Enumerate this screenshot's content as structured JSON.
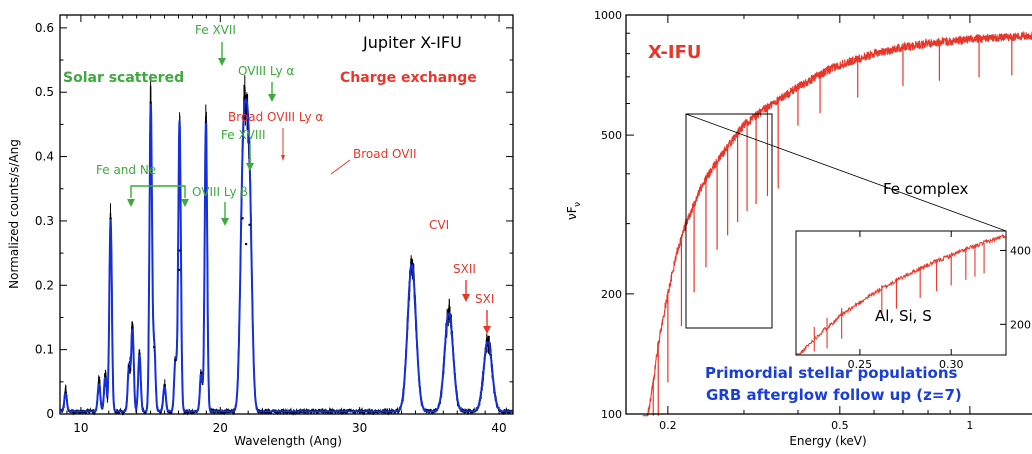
{
  "chart_data": [
    {
      "type": "line",
      "title": "Jupiter X-IFU",
      "xlabel": "Wavelength (Ang)",
      "ylabel": "Normalized  counts/s/Ang",
      "xlim": [
        8.5,
        41
      ],
      "ylim": [
        0,
        0.62
      ],
      "x_ticks": [
        "10",
        "20",
        "30",
        "40"
      ],
      "x_tick_values": [
        10,
        20,
        30,
        40
      ],
      "y_ticks": [
        "0",
        "0.1",
        "0.2",
        "0.3",
        "0.4",
        "0.5",
        "0.6"
      ],
      "y_tick_values": [
        0,
        0.1,
        0.2,
        0.3,
        0.4,
        0.5,
        0.6
      ],
      "colors": {
        "data": "#000000",
        "model": "#1530d8",
        "green": "#3caa3c",
        "red": "#e8362a"
      },
      "baseline": 0.004,
      "peaks": [
        {
          "x": 8.9,
          "y": 0.03
        },
        {
          "x": 11.3,
          "y": 0.045
        },
        {
          "x": 11.75,
          "y": 0.055
        },
        {
          "x": 12.13,
          "y": 0.3
        },
        {
          "x": 13.45,
          "y": 0.07
        },
        {
          "x": 13.7,
          "y": 0.13
        },
        {
          "x": 14.2,
          "y": 0.09
        },
        {
          "x": 15.01,
          "y": 0.48
        },
        {
          "x": 15.26,
          "y": 0.1
        },
        {
          "x": 16.0,
          "y": 0.04
        },
        {
          "x": 16.78,
          "y": 0.08
        },
        {
          "x": 17.05,
          "y": 0.22
        },
        {
          "x": 17.1,
          "y": 0.25
        },
        {
          "x": 18.63,
          "y": 0.06
        },
        {
          "x": 18.97,
          "y": 0.45
        },
        {
          "x": 21.6,
          "y": 0.3
        },
        {
          "x": 21.85,
          "y": 0.26
        },
        {
          "x": 22.1,
          "y": 0.29
        },
        {
          "x": 33.74,
          "y": 0.23
        },
        {
          "x": 36.4,
          "y": 0.155
        },
        {
          "x": 39.2,
          "y": 0.11
        }
      ],
      "annotations": [
        {
          "text": "Solar scattered",
          "color": "green",
          "bold": true
        },
        {
          "text": "Charge exchange",
          "color": "red",
          "bold": true
        },
        {
          "text": "Fe XVII",
          "color": "green"
        },
        {
          "text": "OVIII Ly α",
          "color": "green"
        },
        {
          "text": "Broad OVIII Ly α",
          "color": "red"
        },
        {
          "text": "Fe XVIII",
          "color": "green"
        },
        {
          "text": "Broad OVII",
          "color": "red"
        },
        {
          "text": "Fe and Ne",
          "color": "green"
        },
        {
          "text": "OVIII Ly β",
          "color": "green"
        },
        {
          "text": "CVI",
          "color": "red"
        },
        {
          "text": "SXII",
          "color": "red"
        },
        {
          "text": "SXI",
          "color": "red"
        }
      ]
    },
    {
      "type": "line",
      "scale": "log-log",
      "xlabel": "Energy (keV)",
      "ylabel_main": "νF",
      "ylabel_sub": "ν",
      "xlim": [
        0.16,
        1.5
      ],
      "ylim": [
        100,
        1000
      ],
      "x_ticks": [
        "0.2",
        "0.5",
        "1"
      ],
      "x_tick_values": [
        0.2,
        0.5,
        1
      ],
      "y_ticks": [
        "100",
        "200",
        "500",
        "1000"
      ],
      "y_tick_values": [
        100,
        200,
        500,
        1000
      ],
      "series": [
        {
          "x": [
            0.18,
            0.185,
            0.19,
            0.2,
            0.21,
            0.22,
            0.24,
            0.26,
            0.28,
            0.3,
            0.32,
            0.35,
            0.4,
            0.45,
            0.5,
            0.6,
            0.7,
            0.8,
            0.9,
            1.0,
            1.2,
            1.5
          ],
          "y": [
            100,
            120,
            150,
            200,
            255,
            300,
            375,
            430,
            480,
            530,
            560,
            600,
            660,
            710,
            750,
            800,
            830,
            850,
            860,
            870,
            880,
            890
          ]
        }
      ],
      "absorption_lines": [
        0.185,
        0.19,
        0.2,
        0.215,
        0.23,
        0.245,
        0.26,
        0.275,
        0.29,
        0.305,
        0.32,
        0.34,
        0.36,
        0.4,
        0.45,
        0.55,
        0.7,
        0.85,
        1.05,
        1.25
      ],
      "inset": {
        "xlim": [
          0.215,
          0.33
        ],
        "ylim": [
          150,
          480
        ],
        "x_ticks": [
          "0.25",
          "0.30"
        ],
        "x_tick_values": [
          0.25,
          0.3
        ],
        "y_ticks": [
          "400",
          "200"
        ],
        "y_tick_values": [
          400,
          200
        ],
        "label": "Al, Si, S"
      },
      "annotations": [
        {
          "text": "X-IFU",
          "color": "red",
          "bold": true
        },
        {
          "text": "Fe complex",
          "color": "black"
        },
        {
          "text": "Primordial stellar populations",
          "color": "blue",
          "bold": true
        },
        {
          "text": "GRB afterglow follow up (z=7)",
          "color": "blue",
          "bold": true
        }
      ],
      "colors": {
        "spectrum": "#e8362a",
        "blue": "#1a3fd8"
      }
    }
  ]
}
